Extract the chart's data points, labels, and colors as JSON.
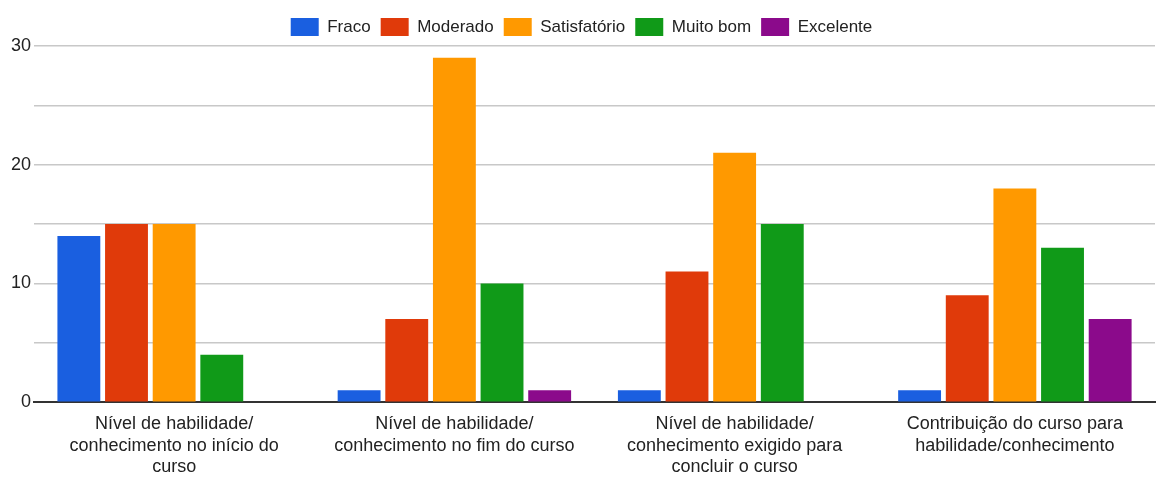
{
  "chart_data": {
    "type": "bar",
    "categories": [
      "Nível de habilidade/conhecimento no início do curso",
      "Nível de habilidade/conhecimento no fim do curso",
      "Nível de habilidade/conhecimento exigido para concluir o curso",
      "Contribuição do curso para habilidade/conhecimento"
    ],
    "series": [
      {
        "name": "Fraco",
        "color": "#1a5fe0",
        "values": [
          14,
          1,
          1,
          1
        ]
      },
      {
        "name": "Moderado",
        "color": "#e03a0a",
        "values": [
          15,
          7,
          11,
          9
        ]
      },
      {
        "name": "Satisfatório",
        "color": "#ff9900",
        "values": [
          15,
          29,
          21,
          18
        ]
      },
      {
        "name": "Muito bom",
        "color": "#109a18",
        "values": [
          4,
          10,
          15,
          13
        ]
      },
      {
        "name": "Excelente",
        "color": "#8b0a8b",
        "values": [
          0,
          1,
          0,
          7
        ]
      }
    ],
    "ylim": [
      0,
      30
    ],
    "yticks": [
      0,
      {
        "value": 5,
        "label": null
      },
      10,
      {
        "value": 15,
        "label": null
      },
      20,
      {
        "value": 25,
        "label": null
      },
      30
    ],
    "grid": "y",
    "legend": "top"
  }
}
